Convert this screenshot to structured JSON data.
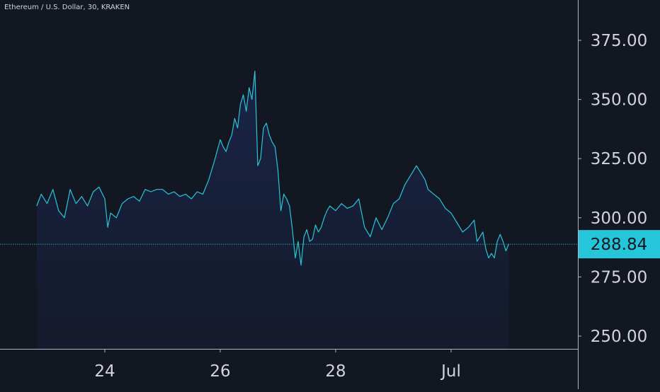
{
  "header": {
    "symbol_title": "Ethereum / U.S. Dollar, 30, KRAKEN"
  },
  "colors": {
    "background": "#131722",
    "line": "#26c6da",
    "area_fill": "#1a2343",
    "axis_text": "#d1d4dc",
    "axis_border": "#b2b5be",
    "price_label_bg": "#26c6da",
    "price_label_text": "#131722"
  },
  "price_axis": {
    "ticks": [
      "375.00",
      "350.00",
      "325.00",
      "300.00",
      "275.00",
      "250.00"
    ],
    "current_price_label": "288.84"
  },
  "time_axis": {
    "ticks": [
      "24",
      "26",
      "28",
      "Jul"
    ]
  },
  "chart_data": {
    "type": "area",
    "title": "Ethereum / U.S. Dollar, 30, KRAKEN",
    "xlabel": "",
    "ylabel": "",
    "x_ticks": [
      "24",
      "26",
      "28",
      "Jul"
    ],
    "y_ticks": [
      250,
      275,
      300,
      325,
      350,
      375
    ],
    "ylim": [
      240,
      390
    ],
    "x_range_days": [
      22.8,
      30.2
    ],
    "last_value": 288.84,
    "grid": false,
    "series": [
      {
        "x": [
          22.82,
          22.9,
          23.0,
          23.1,
          23.2,
          23.3,
          23.4,
          23.5,
          23.6,
          23.7,
          23.8,
          23.9,
          24.0,
          24.05,
          24.1,
          24.2,
          24.3,
          24.4,
          24.5,
          24.6,
          24.7,
          24.8,
          24.9,
          25.0,
          25.1,
          25.2,
          25.3,
          25.4,
          25.5,
          25.6,
          25.7,
          25.8,
          25.9,
          26.0,
          26.05,
          26.1,
          26.15,
          26.2,
          26.25,
          26.3,
          26.35,
          26.4,
          26.45,
          26.5,
          26.55,
          26.6,
          26.65,
          26.7,
          26.75,
          26.8,
          26.85,
          26.9,
          26.95,
          27.0,
          27.05,
          27.1,
          27.15,
          27.2,
          27.25,
          27.3,
          27.35,
          27.4,
          27.45,
          27.5,
          27.55,
          27.6,
          27.65,
          27.7,
          27.75,
          27.8,
          27.85,
          27.9,
          28.0,
          28.1,
          28.2,
          28.3,
          28.4,
          28.5,
          28.6,
          28.7,
          28.8,
          28.9,
          29.0,
          29.1,
          29.2,
          29.3,
          29.4,
          29.5,
          29.55,
          29.6,
          29.7,
          29.8,
          29.9,
          30.0,
          30.1,
          30.2,
          30.3,
          30.4,
          30.45,
          30.5,
          30.55,
          30.6,
          30.65,
          30.7,
          30.75,
          30.8,
          30.85,
          30.9,
          30.95,
          31.0
        ],
        "y": [
          305,
          310,
          306,
          312,
          303,
          300,
          312,
          306,
          309,
          305,
          311,
          313,
          308,
          296,
          302,
          300,
          306,
          308,
          309,
          307,
          312,
          311,
          312,
          312,
          310,
          311,
          309,
          310,
          308,
          311,
          310,
          316,
          324,
          333,
          330,
          328,
          332,
          335,
          342,
          338,
          348,
          352,
          345,
          355,
          350,
          362,
          322,
          325,
          338,
          340,
          335,
          332,
          330,
          320,
          303,
          310,
          308,
          305,
          295,
          283,
          290,
          280,
          292,
          295,
          290,
          291,
          297,
          294,
          296,
          300,
          303,
          305,
          303,
          306,
          304,
          305,
          308,
          296,
          292,
          300,
          295,
          300,
          306,
          308,
          314,
          318,
          322,
          318,
          316,
          312,
          310,
          308,
          304,
          302,
          298,
          294,
          296,
          299,
          290,
          292,
          294,
          287,
          283,
          285,
          283,
          290,
          293,
          290,
          286,
          289
        ]
      }
    ]
  }
}
